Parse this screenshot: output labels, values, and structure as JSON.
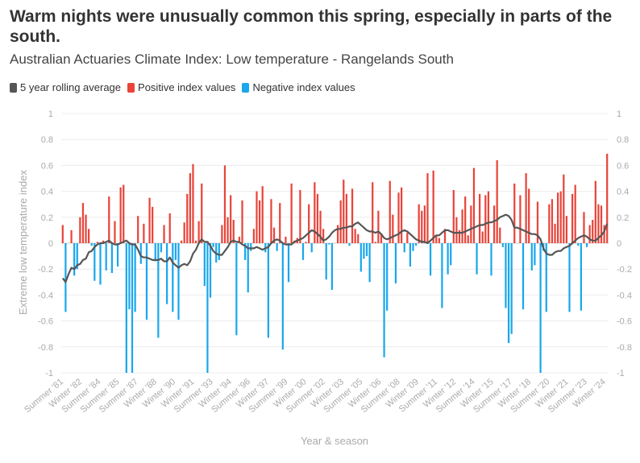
{
  "header": {
    "title": "Warm nights were unusually common this spring, especially in parts of the south.",
    "subtitle": "Australian Actuaries Climate Index: Low temperature - Rangelands South"
  },
  "legend": [
    {
      "label": "5 year rolling average",
      "color": "#555555"
    },
    {
      "label": "Positive index values",
      "color": "#e8443a"
    },
    {
      "label": "Negative index values",
      "color": "#1aa7ec"
    }
  ],
  "chart_data": {
    "type": "bar",
    "title": "Warm nights were unusually common this spring, especially in parts of the south.",
    "subtitle": "Australian Actuaries Climate Index: Low temperature - Rangelands South",
    "xlabel": "Year & season",
    "ylabel": "Extreme low temperature index",
    "ylim": [
      -1,
      1
    ],
    "yticks": [
      "-1",
      "-0.8",
      "-0.6",
      "-0.4",
      "-0.2",
      "0",
      "0.2",
      "0.4",
      "0.6",
      "0.8",
      "1"
    ],
    "xtick_labels": [
      "Summer '81",
      "Winter '82",
      "Summer '84",
      "Summer '85",
      "Summer '87",
      "Winter '88",
      "Winter '90",
      "Winter '91",
      "Summer '93",
      "Winter '94",
      "Summer '96",
      "Winter '97",
      "Summer '99",
      "Winter '00",
      "Summer '02",
      "Winter '03",
      "Summer '05",
      "Winter '06",
      "Summer '08",
      "Winter '09",
      "Summer '11",
      "Winter '12",
      "Summer '14",
      "Winter '15",
      "Summer '17",
      "Winter '18",
      "Summer '20",
      "Winter '21",
      "Summer '23",
      "Winter '24"
    ],
    "series": [
      {
        "name": "Index value (quarterly)",
        "positive_color": "#e8443a",
        "negative_color": "#1aa7ec",
        "values": [
          0.14,
          -0.53,
          0,
          0.1,
          -0.25,
          -0.2,
          0.2,
          0.31,
          0.22,
          0.11,
          -0.02,
          -0.29,
          0.01,
          -0.32,
          0.02,
          -0.21,
          0.36,
          -0.23,
          0.17,
          -0.18,
          0.43,
          0.45,
          -1,
          -0.51,
          -1,
          -0.53,
          0.21,
          -0.16,
          0.15,
          -0.59,
          0.35,
          0.28,
          -0.14,
          -0.73,
          -0.07,
          0.14,
          -0.47,
          0.23,
          -0.53,
          -0.13,
          -0.59,
          0.02,
          0.16,
          0.38,
          0.54,
          0.61,
          0.02,
          0.17,
          0.46,
          -0.33,
          -1,
          -0.42,
          -0.03,
          -0.15,
          -0.13,
          0.14,
          0.6,
          0.2,
          0.37,
          0.18,
          -0.71,
          0.05,
          0.33,
          -0.13,
          -0.38,
          -0.06,
          0.11,
          0.4,
          0.33,
          0.44,
          -0.07,
          -0.73,
          0.34,
          0.12,
          -0.06,
          0.31,
          -0.82,
          0.05,
          -0.3,
          0.46,
          0.02,
          0.04,
          0.41,
          -0.13,
          0.01,
          0.3,
          -0.07,
          0.47,
          0.38,
          0.25,
          0.11,
          -0.28,
          -0.01,
          -0.36,
          0,
          0.14,
          0.33,
          0.49,
          0.38,
          -0.02,
          0.42,
          0.11,
          0.07,
          -0.22,
          -0.12,
          -0.1,
          -0.3,
          0.47,
          0.01,
          0.25,
          0.07,
          -0.88,
          -0.52,
          0.48,
          0.22,
          -0.31,
          0.39,
          0.43,
          -0.07,
          0.08,
          -0.18,
          -0.06,
          -0.02,
          0.3,
          0.25,
          0.29,
          0.54,
          -0.25,
          0.56,
          0.06,
          0.04,
          -0.5,
          0.11,
          -0.24,
          -0.17,
          0.41,
          0.2,
          0.1,
          0.26,
          0.36,
          0.06,
          0.29,
          0.58,
          -0.24,
          0.38,
          0.09,
          0.37,
          0.4,
          -0.25,
          0.29,
          0.64,
          0.12,
          -0.03,
          -0.5,
          -0.77,
          -0.7,
          0.46,
          0,
          0.37,
          -0.51,
          0.54,
          0.42,
          -0.21,
          -0.17,
          0.32,
          -1,
          -0.06,
          -0.53,
          0.3,
          0.34,
          0.15,
          0.39,
          0.4,
          0.53,
          0.21,
          -0.53,
          0.38,
          0.45,
          -0.02,
          -0.52,
          0.24,
          -0.03,
          0.14,
          0.18,
          0.48,
          0.3,
          0.29,
          0.14,
          0.69
        ]
      },
      {
        "name": "5 year rolling average",
        "color": "#555555",
        "values": [
          -0.27,
          -0.3,
          -0.24,
          -0.19,
          -0.2,
          -0.17,
          -0.16,
          -0.13,
          -0.12,
          -0.07,
          -0.06,
          -0.03,
          -0.01,
          0,
          0,
          0.01,
          0.02,
          0,
          -0.01,
          -0.01,
          0,
          0.01,
          0.02,
          0,
          -0.01,
          -0.01,
          -0.05,
          -0.1,
          -0.11,
          -0.11,
          -0.12,
          -0.13,
          -0.13,
          -0.13,
          -0.12,
          -0.14,
          -0.14,
          -0.11,
          -0.15,
          -0.17,
          -0.19,
          -0.17,
          -0.16,
          -0.17,
          -0.14,
          -0.08,
          -0.05,
          0,
          0.03,
          0.01,
          0.01,
          -0.02,
          -0.06,
          -0.08,
          -0.09,
          -0.09,
          -0.06,
          -0.03,
          0.01,
          0.02,
          0.01,
          0.01,
          -0.01,
          -0.02,
          -0.04,
          -0.04,
          -0.04,
          -0.03,
          -0.04,
          -0.05,
          -0.04,
          -0.03,
          0,
          0.02,
          0.03,
          0.02,
          0,
          -0.01,
          -0.01,
          -0.01,
          0.01,
          0.02,
          0.03,
          0.04,
          0.06,
          0.08,
          0.1,
          0.09,
          0.07,
          0.05,
          0.02,
          0.03,
          0.05,
          0.08,
          0.1,
          0.11,
          0.11,
          0.12,
          0.12,
          0.13,
          0.13,
          0.15,
          0.16,
          0.14,
          0.12,
          0.1,
          0.09,
          0.09,
          0.08,
          0.09,
          0.07,
          0.04,
          0.03,
          0.04,
          0.05,
          0.06,
          0.07,
          0.09,
          0.1,
          0.09,
          0.07,
          0.05,
          0.03,
          0.02,
          0.01,
          0.01,
          0,
          0.02,
          0.04,
          0.06,
          0.06,
          0.08,
          0.1,
          0.1,
          0.09,
          0.08,
          0.08,
          0.08,
          0.08,
          0.09,
          0.1,
          0.11,
          0.12,
          0.13,
          0.14,
          0.14,
          0.15,
          0.16,
          0.16,
          0.17,
          0.18,
          0.2,
          0.21,
          0.22,
          0.21,
          0.18,
          0.12,
          0.12,
          0.11,
          0.1,
          0.09,
          0.08,
          0.07,
          0.07,
          0.06,
          0.03,
          -0.04,
          -0.08,
          -0.09,
          -0.09,
          -0.07,
          -0.06,
          -0.06,
          -0.04,
          -0.03,
          -0.02,
          0,
          0.02,
          0.04,
          0.05,
          0.06,
          0.05,
          0.03,
          0.02,
          0.02,
          0.04,
          0.06,
          0.09,
          0.15
        ]
      }
    ]
  }
}
